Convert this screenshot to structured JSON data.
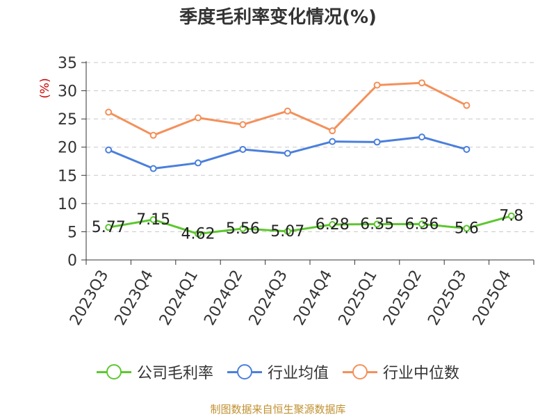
{
  "chart_data": {
    "type": "line",
    "title": "季度毛利率变化情况(%)",
    "ylabel": "(%)",
    "xlabel": "",
    "ylim": [
      0,
      35
    ],
    "yticks": [
      0,
      5,
      10,
      15,
      20,
      25,
      30,
      35
    ],
    "grid": true,
    "legend_position": "bottom",
    "categories": [
      "2023Q3",
      "2023Q4",
      "2024Q1",
      "2024Q2",
      "2024Q3",
      "2024Q4",
      "2025Q1",
      "2025Q2",
      "2025Q3",
      "2025Q4"
    ],
    "series": [
      {
        "name": "公司毛利率",
        "color": "#5cc72e",
        "show_labels": true,
        "values": [
          5.77,
          7.15,
          4.62,
          5.56,
          5.07,
          6.28,
          6.35,
          6.36,
          5.6,
          7.8
        ],
        "labels": [
          "5.77",
          "7.15",
          "4.62",
          "5.56",
          "5.07",
          "6.28",
          "6.35",
          "6.36",
          "5.6",
          "7.8"
        ]
      },
      {
        "name": "行业均值",
        "color": "#4a7fdc",
        "show_labels": false,
        "values": [
          19.5,
          16.2,
          17.2,
          19.6,
          18.9,
          21.0,
          20.9,
          21.8,
          19.6,
          null
        ]
      },
      {
        "name": "行业中位数",
        "color": "#f4905a",
        "show_labels": false,
        "values": [
          26.2,
          22.1,
          25.2,
          24.0,
          26.4,
          22.9,
          31.0,
          31.4,
          27.4,
          null
        ]
      }
    ]
  },
  "source": "制图数据来自恒生聚源数据库"
}
